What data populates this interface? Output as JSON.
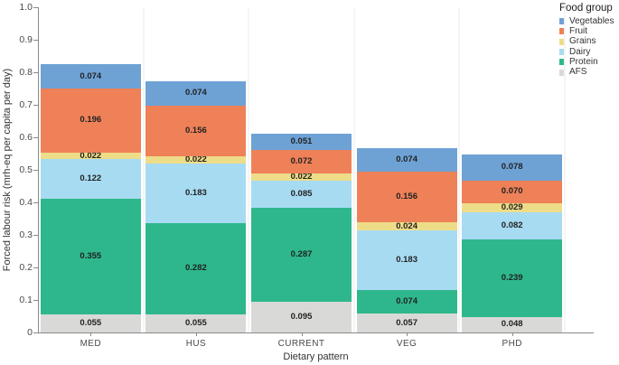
{
  "chart_data": {
    "type": "bar",
    "stacked": true,
    "title": "",
    "xlabel": "Dietary pattern",
    "ylabel": "Forced labour risk (mrh-eq per capita per day)",
    "categories": [
      "MED",
      "HUS",
      "CURRENT",
      "VEG",
      "PHD"
    ],
    "series": [
      {
        "name": "Vegetables",
        "color": "#6ea2d5",
        "values": [
          0.074,
          0.074,
          0.051,
          0.074,
          0.078
        ]
      },
      {
        "name": "Fruit",
        "color": "#ee8158",
        "values": [
          0.196,
          0.156,
          0.072,
          0.156,
          0.07
        ]
      },
      {
        "name": "Grains",
        "color": "#eedd88",
        "values": [
          0.022,
          0.022,
          0.022,
          0.024,
          0.029
        ]
      },
      {
        "name": "Dairy",
        "color": "#a7dbf2",
        "values": [
          0.122,
          0.183,
          0.085,
          0.183,
          0.082
        ]
      },
      {
        "name": "Protein",
        "color": "#2eb78c",
        "values": [
          0.355,
          0.282,
          0.287,
          0.074,
          0.239
        ]
      },
      {
        "name": "AFS",
        "color": "#d9d9d7",
        "values": [
          0.055,
          0.055,
          0.095,
          0.057,
          0.048
        ]
      }
    ],
    "stack_order_bottom_to_top": [
      "AFS",
      "Protein",
      "Dairy",
      "Grains",
      "Fruit",
      "Vegetables"
    ],
    "bar_totals": [
      0.824,
      0.772,
      0.612,
      0.568,
      0.546
    ],
    "value_label_decimals": 3,
    "ylim": [
      0,
      1.0
    ],
    "yticks": [
      "0",
      "0.1",
      "0.2",
      "0.3",
      "0.4",
      "0.5",
      "0.6",
      "0.7",
      "0.8",
      "0.9",
      "1.0"
    ],
    "grid": "faint vertical category separators, no horizontal gridlines",
    "legend_title": "Food group",
    "legend_position": "top-right"
  }
}
